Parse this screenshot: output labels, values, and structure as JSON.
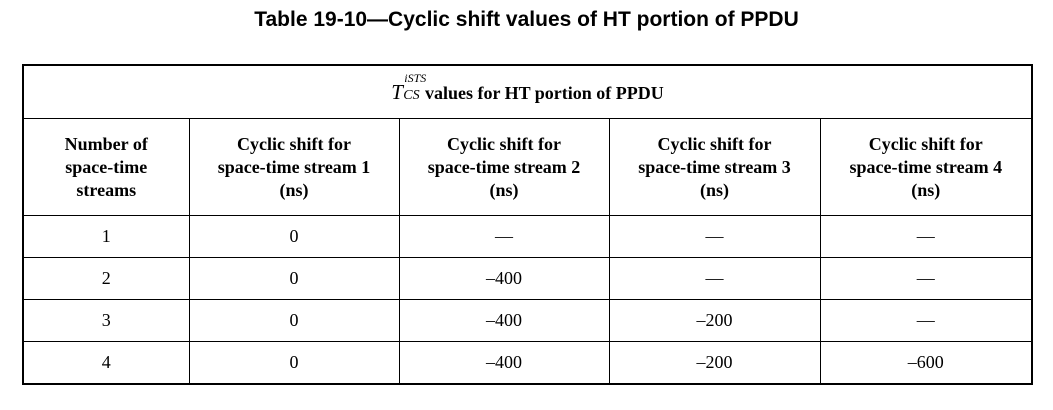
{
  "caption": "Table 19-10—Cyclic shift values of HT portion of PPDU",
  "table": {
    "super_header": {
      "symbol": "T",
      "symbol_sup": "iSTS",
      "symbol_sub": "CS",
      "text": "values for HT portion of PPDU"
    },
    "headers": [
      [
        "Number of",
        "space-time",
        "streams"
      ],
      [
        "Cyclic shift for",
        "space-time stream 1",
        "(ns)"
      ],
      [
        "Cyclic shift for",
        "space-time stream 2",
        "(ns)"
      ],
      [
        "Cyclic shift for",
        "space-time stream 3",
        "(ns)"
      ],
      [
        "Cyclic shift for",
        "space-time stream 4",
        "(ns)"
      ]
    ],
    "rows": [
      [
        "1",
        "0",
        "—",
        "—",
        "—"
      ],
      [
        "2",
        "0",
        "–400",
        "—",
        "—"
      ],
      [
        "3",
        "0",
        "–400",
        "–200",
        "—"
      ],
      [
        "4",
        "0",
        "–400",
        "–200",
        "–600"
      ]
    ]
  }
}
